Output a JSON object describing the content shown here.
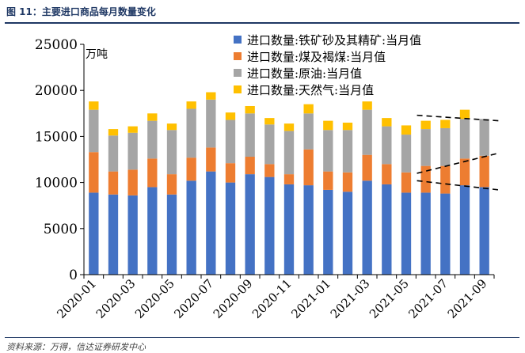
{
  "figure_title": "图 11：主要进口商品每月数量变化",
  "source_text": "资料来源：万得，信达证券研发中心",
  "colors": {
    "iron_ore": "#4472c4",
    "coal": "#ed7d31",
    "crude_oil": "#a5a5a5",
    "natural_gas": "#ffc000",
    "axis": "#000000",
    "trend": "#000000"
  },
  "chart_data": {
    "type": "bar",
    "stacked": true,
    "title": "",
    "ylabel": "万吨",
    "xlabel": "",
    "ylim": [
      0,
      25000
    ],
    "yticks": [
      0,
      5000,
      10000,
      15000,
      20000,
      25000
    ],
    "grid": false,
    "legend_position": "top-right",
    "months": [
      "2020-01",
      "2020-02",
      "2020-03",
      "2020-04",
      "2020-05",
      "2020-06",
      "2020-07",
      "2020-08",
      "2020-09",
      "2020-10",
      "2020-11",
      "2020-12",
      "2021-01",
      "2021-02",
      "2021-03",
      "2021-04",
      "2021-05",
      "2021-06",
      "2021-07",
      "2021-08",
      "2021-09"
    ],
    "xtick_labels": [
      "2020-01",
      "",
      "2020-03",
      "",
      "2020-05",
      "",
      "2020-07",
      "",
      "2020-09",
      "",
      "2020-11",
      "",
      "2021-01",
      "",
      "2021-03",
      "",
      "2021-05",
      "",
      "2021-07",
      "",
      "2021-09"
    ],
    "series": [
      {
        "name": "进口数量:铁矿砂及其精矿:当月值",
        "key": "iron_ore",
        "values": [
          8900,
          8700,
          8600,
          9500,
          8700,
          10200,
          11200,
          10000,
          10900,
          10600,
          9800,
          9700,
          9200,
          9000,
          10200,
          9800,
          8900,
          8900,
          8800,
          9700,
          9500
        ]
      },
      {
        "name": "进口数量:煤及褐煤:当月值",
        "key": "coal",
        "values": [
          4400,
          2500,
          2800,
          3100,
          2200,
          2500,
          2600,
          2100,
          1900,
          1400,
          1100,
          3900,
          2000,
          2100,
          2800,
          2200,
          2200,
          2900,
          3000,
          2900,
          3400
        ]
      },
      {
        "name": "进口数量:原油:当月值",
        "key": "crude_oil",
        "values": [
          4600,
          3900,
          4000,
          4100,
          4800,
          5300,
          5200,
          4700,
          4700,
          4300,
          4700,
          3900,
          4500,
          4600,
          4900,
          4100,
          4100,
          4000,
          4100,
          4300,
          4000
        ]
      },
      {
        "name": "进口数量:天然气:当月值",
        "key": "natural_gas",
        "values": [
          900,
          700,
          700,
          800,
          700,
          800,
          800,
          800,
          800,
          700,
          800,
          1000,
          1000,
          800,
          900,
          900,
          1000,
          900,
          900,
          1000,
          0
        ]
      }
    ],
    "annotations": [
      {
        "type": "dashed-trend",
        "from_month": "2021-06",
        "to_month": "2021-09",
        "y_from": 17300,
        "y_to": 16700
      },
      {
        "type": "dashed-trend",
        "from_month": "2021-06",
        "to_month": "2021-09",
        "y_from": 11000,
        "y_to": 13200
      },
      {
        "type": "dashed-trend",
        "from_month": "2021-06",
        "to_month": "2021-09",
        "y_from": 10200,
        "y_to": 9200
      }
    ]
  }
}
